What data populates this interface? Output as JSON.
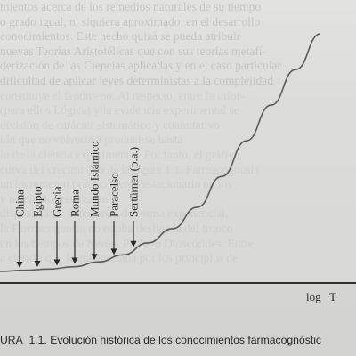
{
  "background_text": [
    "mientos acerca de los remedios naturales de su tiempo",
    "o grado igual, ni siquiera aproximado, en el desarrollo",
    "conocimientos. Este hecho quizá se pueda atribuir",
    "nuevas Teorías Aristotélicas que con sus teorías metafí-",
    "derización de las Ciencias aplicadas y en el caso particular",
    "dificultad de aplicar leyes deterministas a la complejidad",
    "constituye el fenómeno. Al respecto, entre la infor-",
    "(para ellos Lógica) y la evidencia experimental se",
    "división de carácter sistemático y cuantitativo",
    "ión que no volvería a producirse hasta",
    "lo de la ciencia experimental. Por tanto, el gráfico",
    "curva del crecimiento de la figura 1.1. Farmacognosia",
    "un incremento prácticamente estacionario en los",
    "y resultados realizados",
    "disposiciones anteriores, de forma exponencial,",
    "la Farmacognosia no estaba desligada del tronco",
    "en los tiempos de Nerón. Pedacio Dioscórides. Entre",
    "a ciencia que le era aportada por los principios de"
  ],
  "chart_data": {
    "type": "line",
    "title": "",
    "xlabel": "",
    "ylabel": "log   T",
    "series": [
      {
        "name": "",
        "y": [
          0.0,
          0.005,
          0.01,
          0.02,
          0.04,
          0.07,
          0.12,
          0.18,
          0.27,
          0.4,
          0.55,
          0.7,
          0.85,
          1.0
        ]
      }
    ],
    "annotations": [
      {
        "label": "China",
        "position": 0.0
      },
      {
        "label": "Egipto",
        "position": 0.1
      },
      {
        "label": "Grecia",
        "position": 0.21
      },
      {
        "label": "Roma",
        "position": 0.31
      },
      {
        "label": "Mundo Islámico",
        "position": 0.42
      },
      {
        "label": "Paracelso",
        "position": 0.53
      },
      {
        "label": "Sertürner (p.a.)",
        "position": 0.64
      }
    ],
    "grid": false,
    "legend": "none"
  },
  "caption": {
    "prefix": "URA",
    "number": "1.1.",
    "text": "Evolución histórica de los conocimientos farmacognóstic"
  },
  "colors": {
    "ink": "#2b2b2b",
    "curve": "#5a5a5a",
    "axis": "#2f2f2f"
  }
}
